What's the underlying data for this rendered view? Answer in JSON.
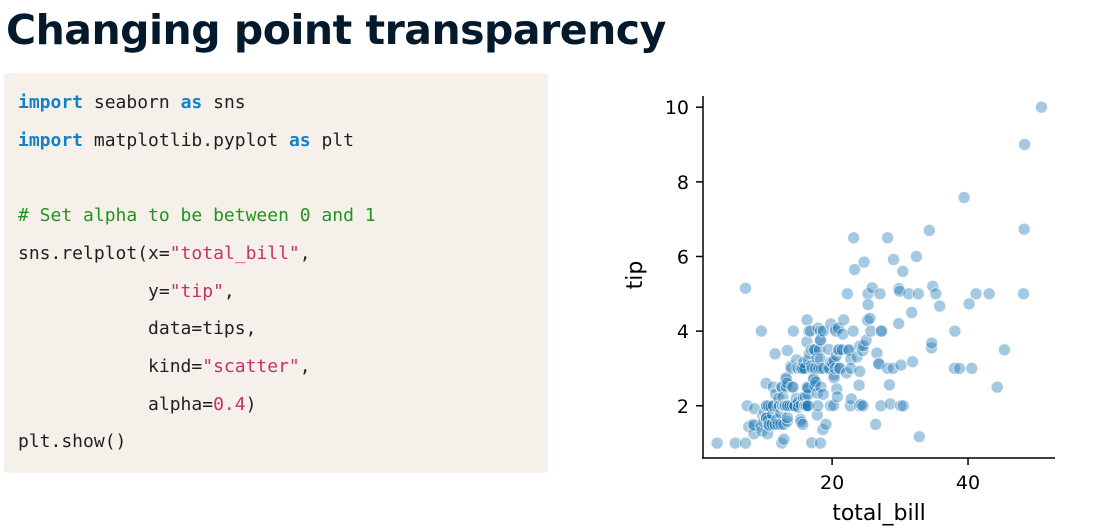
{
  "title": "Changing point transparency",
  "code": {
    "line1": {
      "kw1": "import",
      "mid": " seaborn ",
      "kw2": "as",
      "end": " sns"
    },
    "line2": {
      "kw1": "import",
      "mid": " matplotlib.pyplot ",
      "kw2": "as",
      "end": " plt"
    },
    "line3": {
      "comment": "# Set alpha to be between 0 and 1"
    },
    "line4": {
      "pre": "sns.relplot(x=",
      "str": "\"total_bill\"",
      "post": ","
    },
    "line5": {
      "pre": "            y=",
      "str": "\"tip\"",
      "post": ","
    },
    "line6": {
      "text": "            data=tips,"
    },
    "line7": {
      "pre": "            kind=",
      "str": "\"scatter\"",
      "post": ","
    },
    "line8": {
      "pre": "            alpha=",
      "num": "0.4",
      "post": ")"
    },
    "line9": {
      "text": "plt.show()"
    }
  },
  "chart_data": {
    "type": "scatter",
    "xlabel": "total_bill",
    "ylabel": "tip",
    "xlim": [
      1.0,
      52.8
    ],
    "ylim": [
      0.6,
      10.3
    ],
    "xticks": [
      20,
      40
    ],
    "yticks": [
      2,
      4,
      6,
      8,
      10
    ],
    "grid": false,
    "point_color": "#1f77b4",
    "alpha": 0.4,
    "points": [
      [
        3.07,
        1.0
      ],
      [
        5.75,
        1.0
      ],
      [
        7.25,
        1.0
      ],
      [
        7.25,
        5.15
      ],
      [
        7.51,
        2.0
      ],
      [
        7.74,
        1.44
      ],
      [
        8.35,
        1.5
      ],
      [
        8.51,
        1.25
      ],
      [
        8.52,
        1.48
      ],
      [
        8.58,
        1.92
      ],
      [
        9.55,
        1.45
      ],
      [
        9.6,
        4.0
      ],
      [
        9.68,
        1.32
      ],
      [
        9.78,
        1.73
      ],
      [
        9.94,
        1.56
      ],
      [
        10.07,
        1.83
      ],
      [
        10.27,
        1.71
      ],
      [
        10.29,
        2.6
      ],
      [
        10.33,
        1.67
      ],
      [
        10.33,
        2.0
      ],
      [
        10.34,
        1.66
      ],
      [
        10.34,
        2.0
      ],
      [
        10.51,
        1.25
      ],
      [
        10.59,
        1.61
      ],
      [
        10.63,
        2.0
      ],
      [
        10.65,
        1.5
      ],
      [
        10.77,
        1.47
      ],
      [
        11.02,
        1.98
      ],
      [
        11.17,
        1.5
      ],
      [
        11.24,
        1.76
      ],
      [
        11.35,
        2.5
      ],
      [
        11.38,
        2.0
      ],
      [
        11.59,
        1.5
      ],
      [
        11.61,
        3.39
      ],
      [
        11.69,
        2.31
      ],
      [
        11.87,
        1.63
      ],
      [
        12.02,
        1.97
      ],
      [
        12.03,
        1.5
      ],
      [
        12.16,
        2.2
      ],
      [
        12.26,
        2.0
      ],
      [
        12.43,
        1.8
      ],
      [
        12.46,
        1.5
      ],
      [
        12.54,
        2.5
      ],
      [
        12.6,
        1.0
      ],
      [
        12.66,
        2.5
      ],
      [
        12.69,
        2.0
      ],
      [
        12.74,
        2.01
      ],
      [
        12.76,
        2.23
      ],
      [
        12.9,
        1.1
      ],
      [
        12.9,
        1.5
      ],
      [
        13.0,
        2.0
      ],
      [
        13.03,
        2.0
      ],
      [
        13.13,
        2.0
      ],
      [
        13.16,
        2.75
      ],
      [
        13.27,
        2.5
      ],
      [
        13.28,
        2.72
      ],
      [
        13.37,
        2.0
      ],
      [
        13.39,
        2.61
      ],
      [
        13.42,
        3.48
      ],
      [
        13.42,
        1.58
      ],
      [
        13.42,
        1.68
      ],
      [
        13.51,
        2.0
      ],
      [
        13.81,
        2.0
      ],
      [
        13.94,
        3.06
      ],
      [
        14.0,
        3.0
      ],
      [
        14.07,
        2.5
      ],
      [
        14.15,
        2.0
      ],
      [
        14.26,
        2.5
      ],
      [
        14.31,
        4.0
      ],
      [
        14.48,
        2.0
      ],
      [
        14.52,
        2.0
      ],
      [
        14.73,
        2.2
      ],
      [
        14.78,
        3.23
      ],
      [
        14.83,
        3.02
      ],
      [
        15.01,
        2.09
      ],
      [
        15.04,
        1.96
      ],
      [
        15.06,
        3.0
      ],
      [
        15.36,
        1.64
      ],
      [
        15.38,
        3.0
      ],
      [
        15.42,
        1.57
      ],
      [
        15.48,
        2.02
      ],
      [
        15.53,
        3.0
      ],
      [
        15.69,
        3.0
      ],
      [
        15.69,
        1.5
      ],
      [
        15.77,
        2.23
      ],
      [
        15.81,
        3.16
      ],
      [
        15.95,
        2.0
      ],
      [
        15.98,
        2.03
      ],
      [
        15.98,
        3.0
      ],
      [
        16.0,
        2.0
      ],
      [
        16.04,
        2.24
      ],
      [
        16.21,
        2.0
      ],
      [
        16.27,
        2.5
      ],
      [
        16.29,
        3.71
      ],
      [
        16.31,
        2.0
      ],
      [
        16.32,
        4.3
      ],
      [
        16.4,
        2.5
      ],
      [
        16.43,
        2.3
      ],
      [
        16.45,
        2.47
      ],
      [
        16.47,
        3.23
      ],
      [
        16.49,
        2.0
      ],
      [
        16.58,
        4.0
      ],
      [
        16.66,
        3.4
      ],
      [
        16.82,
        4.0
      ],
      [
        16.93,
        3.07
      ],
      [
        16.97,
        3.5
      ],
      [
        16.99,
        1.01
      ],
      [
        17.07,
        3.0
      ],
      [
        17.26,
        2.74
      ],
      [
        17.29,
        2.71
      ],
      [
        17.31,
        3.5
      ],
      [
        17.46,
        2.54
      ],
      [
        17.47,
        3.5
      ],
      [
        17.51,
        3.0
      ],
      [
        17.59,
        2.64
      ],
      [
        17.78,
        3.27
      ],
      [
        17.81,
        2.34
      ],
      [
        17.82,
        1.75
      ],
      [
        17.89,
        2.0
      ],
      [
        17.92,
        4.08
      ],
      [
        18.04,
        3.0
      ],
      [
        18.15,
        3.5
      ],
      [
        18.24,
        3.76
      ],
      [
        18.26,
        3.25
      ],
      [
        18.28,
        4.0
      ],
      [
        18.29,
        3.76
      ],
      [
        18.29,
        1.0
      ],
      [
        18.35,
        2.5
      ],
      [
        18.43,
        3.0
      ],
      [
        18.64,
        1.36
      ],
      [
        18.69,
        2.31
      ],
      [
        18.71,
        4.0
      ],
      [
        18.78,
        3.0
      ],
      [
        19.08,
        1.5
      ],
      [
        19.44,
        3.0
      ],
      [
        19.49,
        3.51
      ],
      [
        19.65,
        3.0
      ],
      [
        19.77,
        2.0
      ],
      [
        19.81,
        4.19
      ],
      [
        19.82,
        3.18
      ],
      [
        20.08,
        3.15
      ],
      [
        20.23,
        2.01
      ],
      [
        20.27,
        2.83
      ],
      [
        20.29,
        2.75
      ],
      [
        20.29,
        3.21
      ],
      [
        20.45,
        3.0
      ],
      [
        20.49,
        4.06
      ],
      [
        20.53,
        4.0
      ],
      [
        20.65,
        3.35
      ],
      [
        20.69,
        2.45
      ],
      [
        20.76,
        2.24
      ],
      [
        20.9,
        3.5
      ],
      [
        20.92,
        4.08
      ],
      [
        21.01,
        3.5
      ],
      [
        21.01,
        3.0
      ],
      [
        21.16,
        3.0
      ],
      [
        21.5,
        3.5
      ],
      [
        21.58,
        3.92
      ],
      [
        21.7,
        4.3
      ],
      [
        22.12,
        2.88
      ],
      [
        22.23,
        5.0
      ],
      [
        22.42,
        3.48
      ],
      [
        22.49,
        3.5
      ],
      [
        22.67,
        2.0
      ],
      [
        22.75,
        3.25
      ],
      [
        22.76,
        3.0
      ],
      [
        22.82,
        2.18
      ],
      [
        23.1,
        4.0
      ],
      [
        23.17,
        6.5
      ],
      [
        23.33,
        5.65
      ],
      [
        23.68,
        3.31
      ],
      [
        23.95,
        2.55
      ],
      [
        24.01,
        2.0
      ],
      [
        24.06,
        3.6
      ],
      [
        24.08,
        2.92
      ],
      [
        24.27,
        2.03
      ],
      [
        24.52,
        3.48
      ],
      [
        24.55,
        2.0
      ],
      [
        24.59,
        3.61
      ],
      [
        24.71,
        5.85
      ],
      [
        25.0,
        3.75
      ],
      [
        25.21,
        4.29
      ],
      [
        25.28,
        5.0
      ],
      [
        25.29,
        4.71
      ],
      [
        25.56,
        4.34
      ],
      [
        25.71,
        4.0
      ],
      [
        25.89,
        5.16
      ],
      [
        26.41,
        1.5
      ],
      [
        26.59,
        3.41
      ],
      [
        26.86,
        3.14
      ],
      [
        26.88,
        3.12
      ],
      [
        27.05,
        5.0
      ],
      [
        27.18,
        2.0
      ],
      [
        27.2,
        4.0
      ],
      [
        27.28,
        4.0
      ],
      [
        28.15,
        3.0
      ],
      [
        28.17,
        6.5
      ],
      [
        28.44,
        2.56
      ],
      [
        28.55,
        2.05
      ],
      [
        28.97,
        3.0
      ],
      [
        29.03,
        5.92
      ],
      [
        29.8,
        4.2
      ],
      [
        29.85,
        5.14
      ],
      [
        29.93,
        5.07
      ],
      [
        30.06,
        2.0
      ],
      [
        30.14,
        3.09
      ],
      [
        30.4,
        5.6
      ],
      [
        30.46,
        2.0
      ],
      [
        31.27,
        5.0
      ],
      [
        31.71,
        4.5
      ],
      [
        31.85,
        3.18
      ],
      [
        32.4,
        6.0
      ],
      [
        32.68,
        5.0
      ],
      [
        32.83,
        1.17
      ],
      [
        34.3,
        6.7
      ],
      [
        34.63,
        3.55
      ],
      [
        34.65,
        3.68
      ],
      [
        34.81,
        5.2
      ],
      [
        35.26,
        5.0
      ],
      [
        35.83,
        4.67
      ],
      [
        38.01,
        3.0
      ],
      [
        38.07,
        4.0
      ],
      [
        38.73,
        3.0
      ],
      [
        39.42,
        7.58
      ],
      [
        40.17,
        4.73
      ],
      [
        40.55,
        3.0
      ],
      [
        41.19,
        5.0
      ],
      [
        43.11,
        5.0
      ],
      [
        44.3,
        2.5
      ],
      [
        45.35,
        3.5
      ],
      [
        48.17,
        5.0
      ],
      [
        48.27,
        6.73
      ],
      [
        48.33,
        9.0
      ],
      [
        50.81,
        10.0
      ]
    ]
  }
}
